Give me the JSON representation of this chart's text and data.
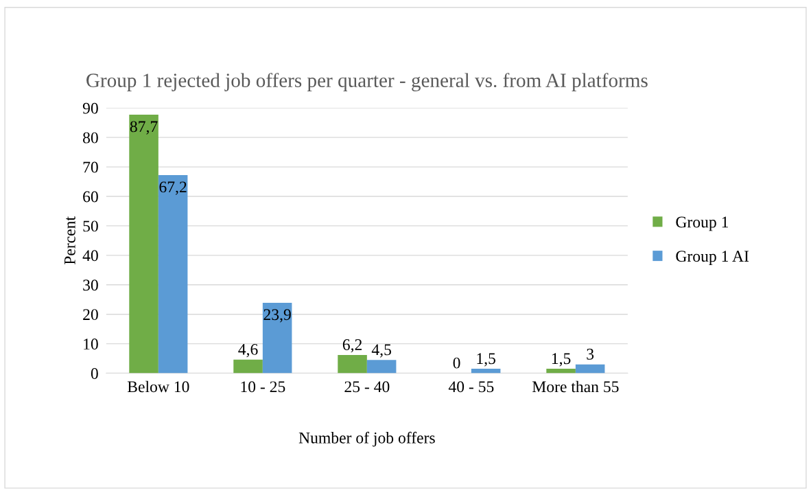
{
  "chart_data": {
    "type": "bar",
    "title": "Group 1 rejected job offers per quarter - general vs. from AI platforms",
    "xlabel": "Number of job offers",
    "ylabel": "Percent",
    "categories": [
      "Below 10",
      "10 - 25",
      "25 - 40",
      "40 - 55",
      "More than 55"
    ],
    "series": [
      {
        "name": "Group 1",
        "color": "#70ad47",
        "values": [
          87.7,
          4.6,
          6.2,
          0,
          1.5
        ],
        "value_labels": [
          "87,7",
          "4,6",
          "6,2",
          "0",
          "1,5"
        ]
      },
      {
        "name": "Group 1 AI",
        "color": "#5b9bd5",
        "values": [
          67.2,
          23.9,
          4.5,
          1.5,
          3
        ],
        "value_labels": [
          "67,2",
          "23,9",
          "4,5",
          "1,5",
          "3"
        ]
      }
    ],
    "ylim": [
      0,
      90
    ],
    "yticks": [
      0,
      10,
      20,
      30,
      40,
      50,
      60,
      70,
      80,
      90
    ],
    "grid": "y",
    "legend": "right"
  }
}
